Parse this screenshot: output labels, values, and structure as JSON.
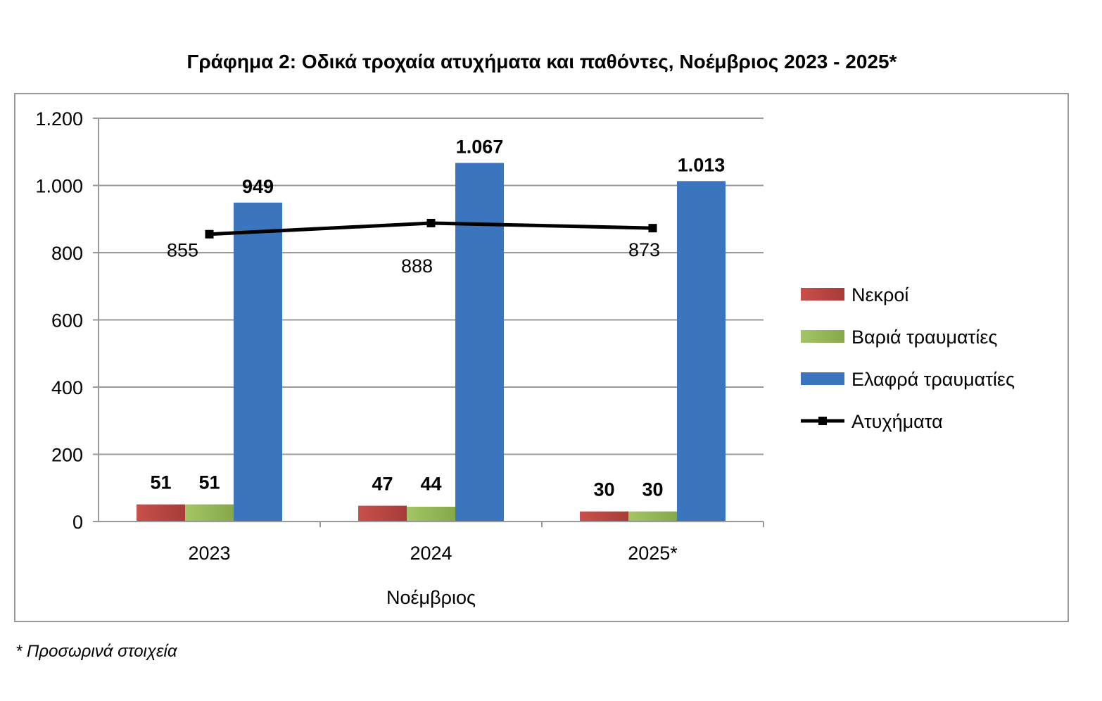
{
  "chart_data": {
    "type": "bar",
    "title": "Γράφημα 2: Οδικά τροχαία ατυχήματα και παθόντες, Νοέμβριος 2023 - 2025*",
    "xlabel": "Νοέμβριος",
    "ylabel": "",
    "ylim": [
      0,
      1200
    ],
    "yticks": [
      0,
      200,
      400,
      600,
      800,
      1000,
      1200
    ],
    "ytick_labels": [
      "0",
      "200",
      "400",
      "600",
      "800",
      "1.000",
      "1.200"
    ],
    "categories": [
      "2023",
      "2024",
      "2025*"
    ],
    "grid": true,
    "legend_position": "right",
    "series": [
      {
        "name": "Νεκροί",
        "type": "bar",
        "color": "#c0504d",
        "values": [
          51,
          47,
          30
        ],
        "labels": [
          "51",
          "47",
          "30"
        ]
      },
      {
        "name": "Βαριά τραυματίες",
        "type": "bar",
        "color": "#9bbb59",
        "values": [
          51,
          44,
          30
        ],
        "labels": [
          "51",
          "44",
          "30"
        ]
      },
      {
        "name": "Ελαφρά τραυματίες",
        "type": "bar",
        "color": "#3a75bd",
        "values": [
          949,
          1067,
          1013
        ],
        "labels": [
          "949",
          "1.067",
          "1.013"
        ]
      },
      {
        "name": "Ατυχήματα",
        "type": "line",
        "color": "#000000",
        "values": [
          855,
          888,
          873
        ],
        "labels": [
          "855",
          "888",
          "873"
        ]
      }
    ]
  },
  "footnote": "* Προσωρινά στοιχεία"
}
